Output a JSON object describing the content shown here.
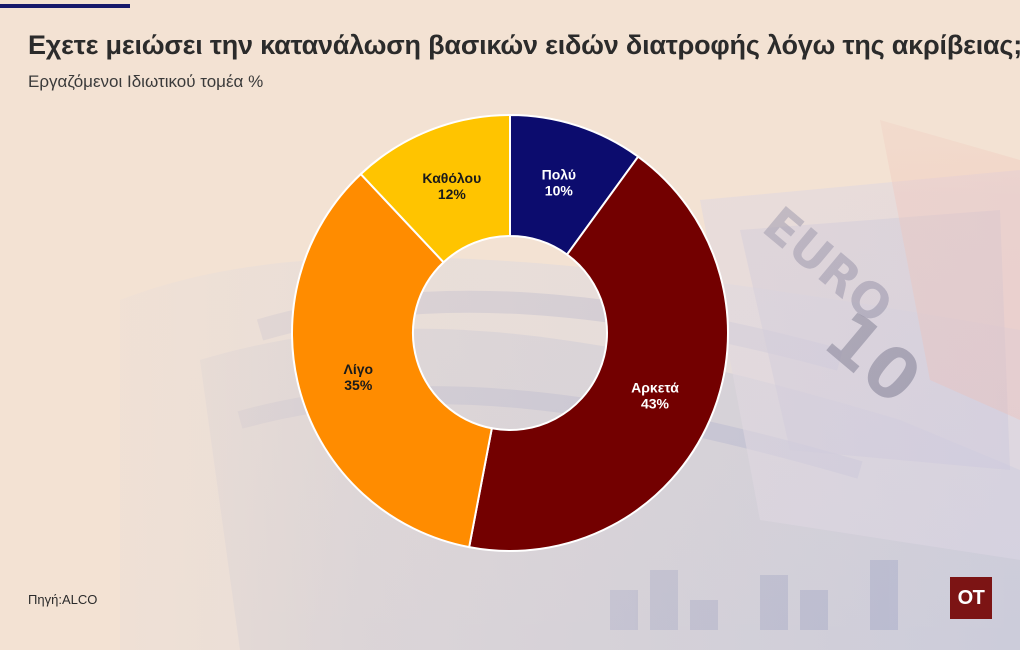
{
  "header": {
    "title": "Εχετε μειώσει την κατανάλωση βασικών ειδών διατροφής λόγω της ακρίβειας;",
    "subtitle": "Εργαζόμενοι Ιδιωτικού τομέα %"
  },
  "footer": {
    "source": "Πηγή:ALCO",
    "logo_text": "OT"
  },
  "colors": {
    "background": "#f3e2d3",
    "accent_bar": "#17196b",
    "logo": "#7c1414"
  },
  "chart_data": {
    "type": "pie",
    "donut": true,
    "title": "Εχετε μειώσει την κατανάλωση βασικών ειδών διατροφής λόγω της ακρίβειας;",
    "subtitle": "Εργαζόμενοι Ιδιωτικού τομέα %",
    "unit": "%",
    "slices": [
      {
        "label": "Πολύ",
        "value": 10,
        "display": "10%",
        "color": "#0c0c6e",
        "text_color": "#ffffff"
      },
      {
        "label": "Αρκετά",
        "value": 43,
        "display": "43%",
        "color": "#730000",
        "text_color": "#ffffff"
      },
      {
        "label": "Λίγο",
        "value": 35,
        "display": "35%",
        "color": "#ff8c00",
        "text_color": "#1a1a1a"
      },
      {
        "label": "Καθόλου",
        "value": 12,
        "display": "12%",
        "color": "#ffc400",
        "text_color": "#1a1a1a"
      }
    ]
  }
}
